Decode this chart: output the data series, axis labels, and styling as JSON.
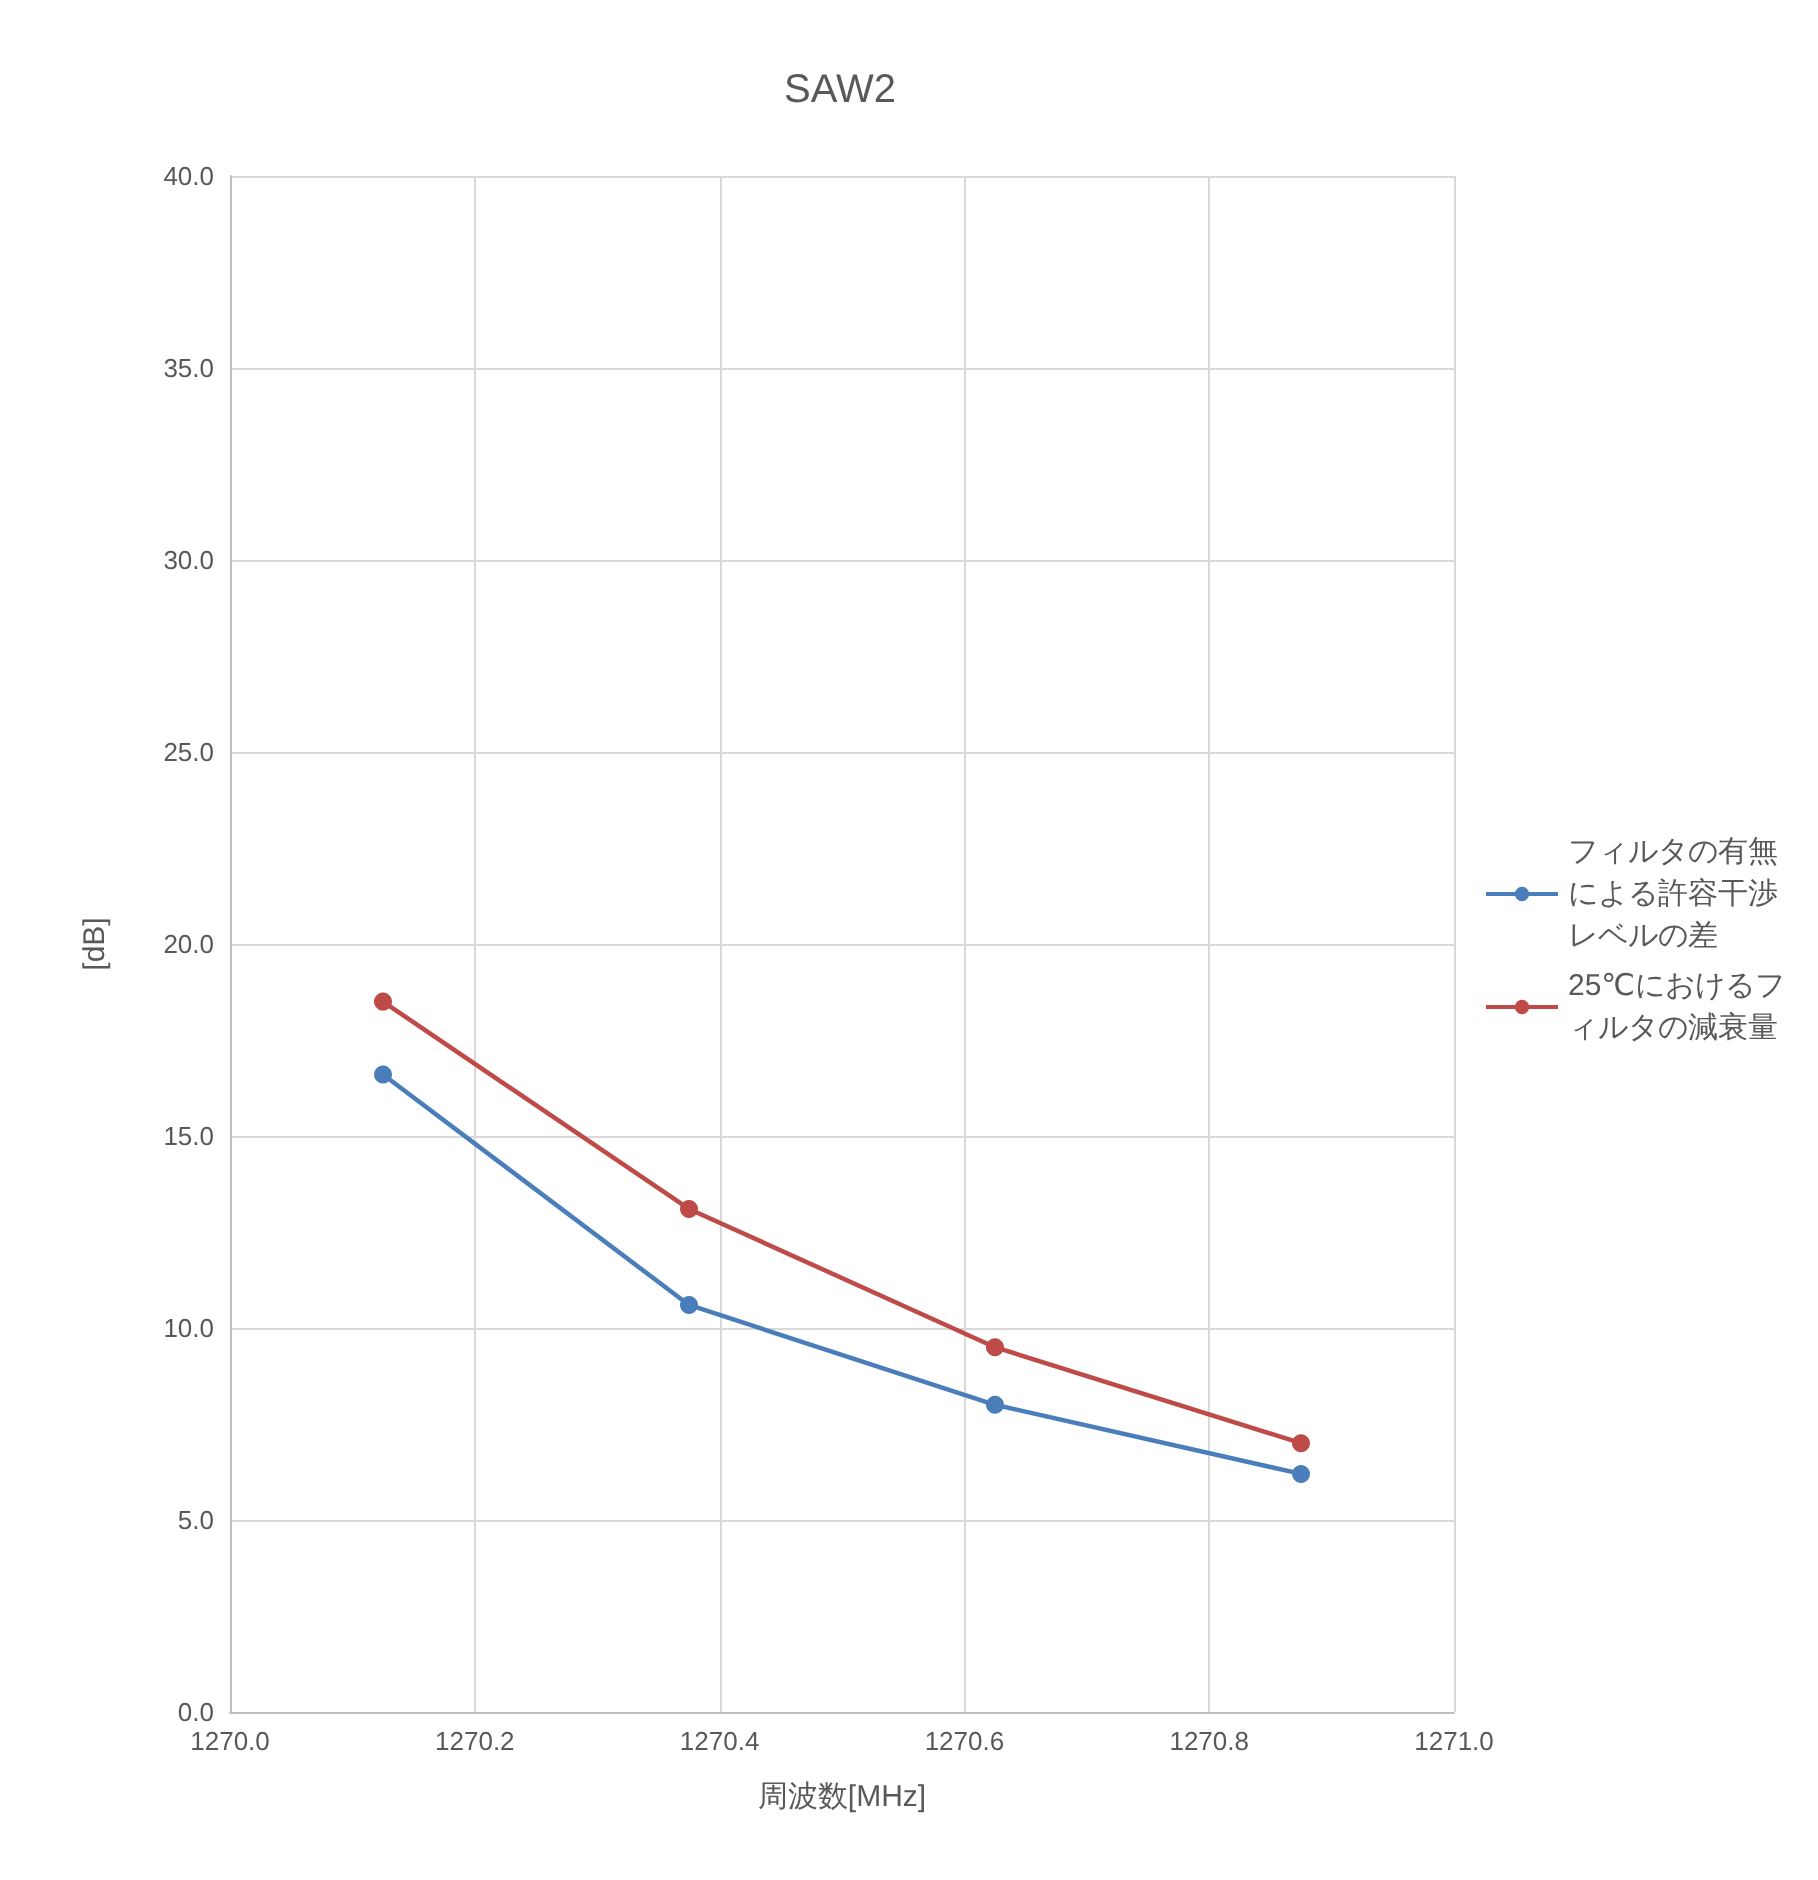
{
  "chart_data": {
    "type": "line",
    "title": "SAW2",
    "xlabel": "周波数[MHz]",
    "ylabel": "[dB]",
    "x": [
      1270.125,
      1270.375,
      1270.625,
      1270.875
    ],
    "series": [
      {
        "name": "フィルタの有無による許容干渉レベルの差",
        "color": "#4a7ebb",
        "values": [
          16.6,
          10.6,
          8.0,
          6.2
        ]
      },
      {
        "name": "25℃におけるフィルタの減衰量",
        "color": "#be4b48",
        "values": [
          18.5,
          13.1,
          9.5,
          7.0
        ]
      }
    ],
    "xlim": [
      1270.0,
      1271.0
    ],
    "xticks": [
      {
        "value": 1270.0,
        "label": "1270.0"
      },
      {
        "value": 1270.2,
        "label": "1270.2"
      },
      {
        "value": 1270.4,
        "label": "1270.4"
      },
      {
        "value": 1270.6,
        "label": "1270.6"
      },
      {
        "value": 1270.8,
        "label": "1270.8"
      },
      {
        "value": 1271.0,
        "label": "1271.0"
      }
    ],
    "ylim": [
      0,
      40
    ],
    "yticks": [
      {
        "value": 0,
        "label": "0.0"
      },
      {
        "value": 5,
        "label": "5.0"
      },
      {
        "value": 10,
        "label": "10.0"
      },
      {
        "value": 15,
        "label": "15.0"
      },
      {
        "value": 20,
        "label": "20.0"
      },
      {
        "value": 25,
        "label": "25.0"
      },
      {
        "value": 30,
        "label": "30.0"
      },
      {
        "value": 35,
        "label": "35.0"
      },
      {
        "value": 40,
        "label": "40.0"
      }
    ],
    "grid": true,
    "legend": "right",
    "marker": "circle",
    "line_style": "solid"
  }
}
